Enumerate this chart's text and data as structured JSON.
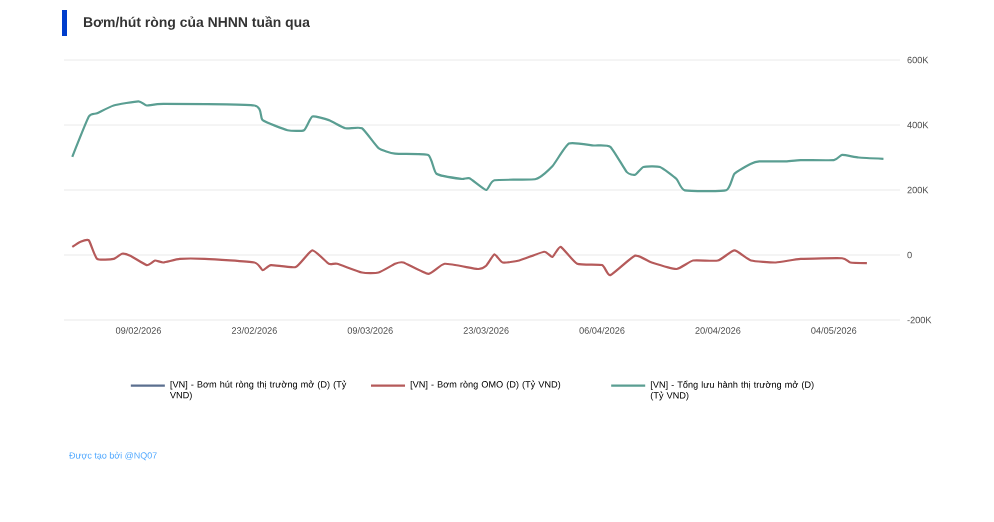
{
  "chart_data": {
    "type": "line",
    "title": "Bơm/hút ròng của NHNN tuần qua",
    "xlim": [
      "2026-01-31",
      "2026-05-12"
    ],
    "xticks": [
      {
        "value": "2026-02-09",
        "label": "09/02/2026"
      },
      {
        "value": "2026-02-23",
        "label": "23/02/2026"
      },
      {
        "value": "2026-03-09",
        "label": "09/03/2026"
      },
      {
        "value": "2026-03-23",
        "label": "23/03/2026"
      },
      {
        "value": "2026-04-06",
        "label": "06/04/2026"
      },
      {
        "value": "2026-04-20",
        "label": "20/04/2026"
      },
      {
        "value": "2026-05-04",
        "label": "04/05/2026"
      }
    ],
    "ylim": [
      -200000,
      600000
    ],
    "yticks": [
      {
        "value": -200000,
        "label": "-200K"
      },
      0,
      {
        "value": 200000,
        "label": "200K"
      },
      {
        "value": 400000,
        "label": "400K"
      },
      {
        "value": 600000,
        "label": "600K"
      }
    ],
    "grid": "y",
    "legend": "bottom",
    "marker": "none",
    "line_style": "solid",
    "series": [
      {
        "name": "[VN] - Bơm hút ròng thị trường mở (D) (Tỷ VND)",
        "color": "#5b6f8f"
      },
      {
        "name": "[VN] - Bơm ròng OMO (D) (Tỷ VND)",
        "color": "#b55a5a",
        "x": [
          "2026-02-01",
          "2026-02-02",
          "2026-02-03",
          "2026-02-04",
          "2026-02-06",
          "2026-02-07",
          "2026-02-08",
          "2026-02-10",
          "2026-02-11",
          "2026-02-12",
          "2026-02-14",
          "2026-02-17",
          "2026-02-23",
          "2026-02-24",
          "2026-02-25",
          "2026-02-28",
          "2026-03-02",
          "2026-03-04",
          "2026-03-05",
          "2026-03-08",
          "2026-03-10",
          "2026-03-12",
          "2026-03-13",
          "2026-03-16",
          "2026-03-18",
          "2026-03-22",
          "2026-03-23",
          "2026-03-24",
          "2026-03-25",
          "2026-03-27",
          "2026-03-30",
          "2026-03-31",
          "2026-04-01",
          "2026-04-03",
          "2026-04-06",
          "2026-04-07",
          "2026-04-10",
          "2026-04-12",
          "2026-04-15",
          "2026-04-17",
          "2026-04-20",
          "2026-04-22",
          "2026-04-24",
          "2026-04-27",
          "2026-04-30",
          "2026-05-05",
          "2026-05-06",
          "2026-05-08"
        ],
        "values": [
          25000,
          41000,
          45000,
          -12000,
          -12000,
          4000,
          -2000,
          -31000,
          -17000,
          -23000,
          -12000,
          -12000,
          -23000,
          -47000,
          -31000,
          -37000,
          14000,
          -27000,
          -27000,
          -54000,
          -54000,
          -27000,
          -23000,
          -58000,
          -27000,
          -43000,
          -33000,
          2000,
          -23000,
          -17000,
          10000,
          -6000,
          25000,
          -27000,
          -31000,
          -62000,
          -2000,
          -23000,
          -43000,
          -17000,
          -17000,
          14000,
          -17000,
          -23000,
          -12000,
          -10000,
          -23000,
          -25000
        ]
      },
      {
        "name": "[VN] - Tổng lưu hành thị trường mở (D) (Tỷ VND)",
        "color": "#5a9e92",
        "x": [
          "2026-02-01",
          "2026-02-03",
          "2026-02-04",
          "2026-02-06",
          "2026-02-09",
          "2026-02-10",
          "2026-02-12",
          "2026-02-23",
          "2026-02-24",
          "2026-02-27",
          "2026-03-01",
          "2026-03-02",
          "2026-03-04",
          "2026-03-06",
          "2026-03-08",
          "2026-03-10",
          "2026-03-12",
          "2026-03-16",
          "2026-03-17",
          "2026-03-20",
          "2026-03-21",
          "2026-03-23",
          "2026-03-24",
          "2026-03-29",
          "2026-03-31",
          "2026-04-02",
          "2026-04-05",
          "2026-04-07",
          "2026-04-09",
          "2026-04-10",
          "2026-04-11",
          "2026-04-13",
          "2026-04-15",
          "2026-04-16",
          "2026-04-21",
          "2026-04-22",
          "2026-04-24",
          "2026-04-25",
          "2026-04-28",
          "2026-04-30",
          "2026-05-04",
          "2026-05-05",
          "2026-05-07",
          "2026-05-10"
        ],
        "values": [
          302000,
          426000,
          436000,
          460000,
          473000,
          460000,
          465000,
          460000,
          415000,
          384000,
          384000,
          426000,
          415000,
          390000,
          390000,
          329000,
          312000,
          308000,
          250000,
          234000,
          236000,
          200000,
          230000,
          234000,
          273000,
          343000,
          337000,
          333000,
          255000,
          247000,
          271000,
          271000,
          234000,
          199000,
          199000,
          250000,
          281000,
          288000,
          288000,
          292000,
          292000,
          308000,
          300000,
          296000
        ]
      }
    ],
    "annotations": [
      "Được tạo bởi @NQ07"
    ]
  }
}
